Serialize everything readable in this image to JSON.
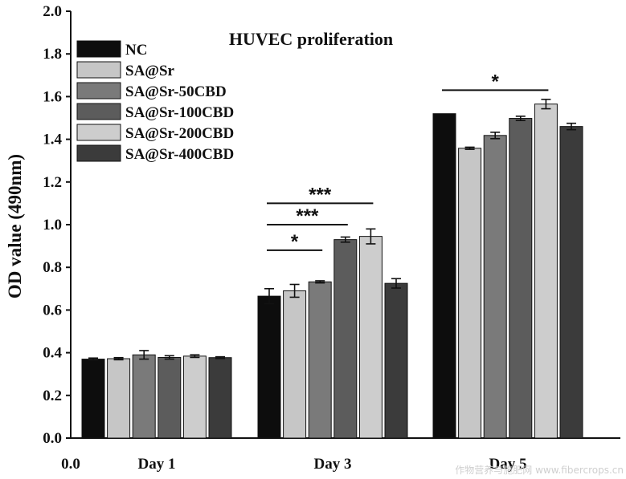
{
  "chart_data": {
    "type": "bar",
    "title": "HUVEC proliferation",
    "ylabel": "OD value (490nm)",
    "xlabel": "",
    "ylim": [
      0,
      2.0
    ],
    "yticks": [
      "0.0",
      "0.2",
      "0.4",
      "0.6",
      "0.8",
      "1.0",
      "1.2",
      "1.4",
      "1.6",
      "1.8",
      "2.0"
    ],
    "x_extra_tick": "0.0",
    "categories": [
      "Day 1",
      "Day 3",
      "Day 5"
    ],
    "legend_position": "top-left",
    "series": [
      {
        "name": "NC",
        "color": "#0d0d0d",
        "values": [
          0.37,
          0.665,
          1.52
        ],
        "errors": [
          0.005,
          0.035,
          0.0
        ]
      },
      {
        "name": "SA@Sr",
        "color": "#c6c6c6",
        "values": [
          0.372,
          0.69,
          1.358
        ],
        "errors": [
          0.005,
          0.03,
          0.005
        ]
      },
      {
        "name": "SA@Sr-50CBD",
        "color": "#7a7a7a",
        "values": [
          0.39,
          0.732,
          1.418
        ],
        "errors": [
          0.02,
          0.005,
          0.015
        ]
      },
      {
        "name": "SA@Sr-100CBD",
        "color": "#5c5c5c",
        "values": [
          0.378,
          0.93,
          1.498
        ],
        "errors": [
          0.008,
          0.012,
          0.01
        ]
      },
      {
        "name": "SA@Sr-200CBD",
        "color": "#cdcdcd",
        "values": [
          0.384,
          0.945,
          1.565
        ],
        "errors": [
          0.006,
          0.035,
          0.022
        ]
      },
      {
        "name": "SA@Sr-400CBD",
        "color": "#3b3b3b",
        "values": [
          0.377,
          0.725,
          1.46
        ],
        "errors": [
          0.004,
          0.022,
          0.015
        ]
      }
    ],
    "significance": [
      {
        "group": 1,
        "from": 0,
        "to": 4,
        "y": 1.1,
        "label": "***"
      },
      {
        "group": 1,
        "from": 0,
        "to": 3,
        "y": 1.0,
        "label": "***"
      },
      {
        "group": 1,
        "from": 0,
        "to": 2,
        "y": 0.88,
        "label": "*"
      },
      {
        "group": 2,
        "from": 0,
        "to": 4,
        "y": 1.63,
        "label": "*"
      }
    ],
    "watermark": "作物营养与施肥网 www.fibercrops.cn",
    "colors": {
      "axis": "#111111",
      "background": "#ffffff"
    }
  }
}
